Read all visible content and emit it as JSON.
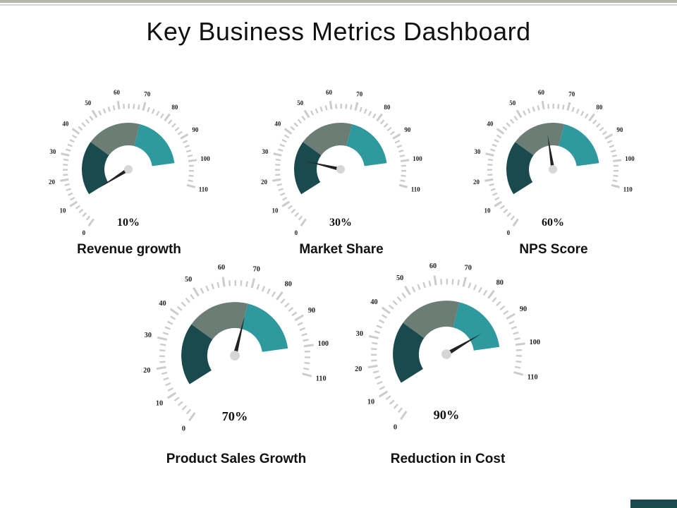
{
  "title": "Key Business Metrics Dashboard",
  "colors": {
    "segment_dark": "#1a4a4d",
    "segment_mid": "#6b7d74",
    "segment_teal": "#2e9a9e",
    "ticks": "#cccccc",
    "hub": "#d6d6d6",
    "needle": "#222222",
    "corner_block": "#1b4a4e"
  },
  "chart_data": [
    {
      "type": "gauge",
      "title": "Revenue growth",
      "value_label": "10%",
      "value": 10,
      "axis_range": [
        0,
        110
      ],
      "tick_labels": [
        "0",
        "10",
        "20",
        "30",
        "40",
        "50",
        "60",
        "70",
        "80",
        "90",
        "100",
        "110"
      ],
      "bands": [
        {
          "name": "low",
          "from": 10,
          "to": 40
        },
        {
          "name": "mid",
          "from": 40,
          "to": 70
        },
        {
          "name": "high",
          "from": 70,
          "to": 100
        }
      ]
    },
    {
      "type": "gauge",
      "title": "Market Share",
      "value_label": "30%",
      "value": 30,
      "axis_range": [
        0,
        110
      ],
      "tick_labels": [
        "0",
        "10",
        "20",
        "30",
        "40",
        "50",
        "60",
        "70",
        "80",
        "90",
        "100",
        "110"
      ],
      "bands": [
        {
          "name": "low",
          "from": 10,
          "to": 40
        },
        {
          "name": "mid",
          "from": 40,
          "to": 70
        },
        {
          "name": "high",
          "from": 70,
          "to": 100
        }
      ]
    },
    {
      "type": "gauge",
      "title": "NPS Score",
      "value_label": "60%",
      "value": 60,
      "axis_range": [
        0,
        110
      ],
      "tick_labels": [
        "0",
        "10",
        "20",
        "30",
        "40",
        "50",
        "60",
        "70",
        "80",
        "90",
        "100",
        "110"
      ],
      "bands": [
        {
          "name": "low",
          "from": 10,
          "to": 40
        },
        {
          "name": "mid",
          "from": 40,
          "to": 70
        },
        {
          "name": "high",
          "from": 70,
          "to": 100
        }
      ]
    },
    {
      "type": "gauge",
      "title": "Product Sales Growth",
      "value_label": "70%",
      "value": 70,
      "axis_range": [
        0,
        110
      ],
      "tick_labels": [
        "0",
        "10",
        "20",
        "30",
        "40",
        "50",
        "60",
        "70",
        "80",
        "90",
        "100",
        "110"
      ],
      "bands": [
        {
          "name": "low",
          "from": 10,
          "to": 40
        },
        {
          "name": "mid",
          "from": 40,
          "to": 70
        },
        {
          "name": "high",
          "from": 70,
          "to": 100
        }
      ]
    },
    {
      "type": "gauge",
      "title": "Reduction in Cost",
      "value_label": "90%",
      "value": 90,
      "axis_range": [
        0,
        110
      ],
      "tick_labels": [
        "0",
        "10",
        "20",
        "30",
        "40",
        "50",
        "60",
        "70",
        "80",
        "90",
        "100",
        "110"
      ],
      "bands": [
        {
          "name": "low",
          "from": 10,
          "to": 40
        },
        {
          "name": "mid",
          "from": 40,
          "to": 70
        },
        {
          "name": "high",
          "from": 70,
          "to": 100
        }
      ]
    }
  ]
}
